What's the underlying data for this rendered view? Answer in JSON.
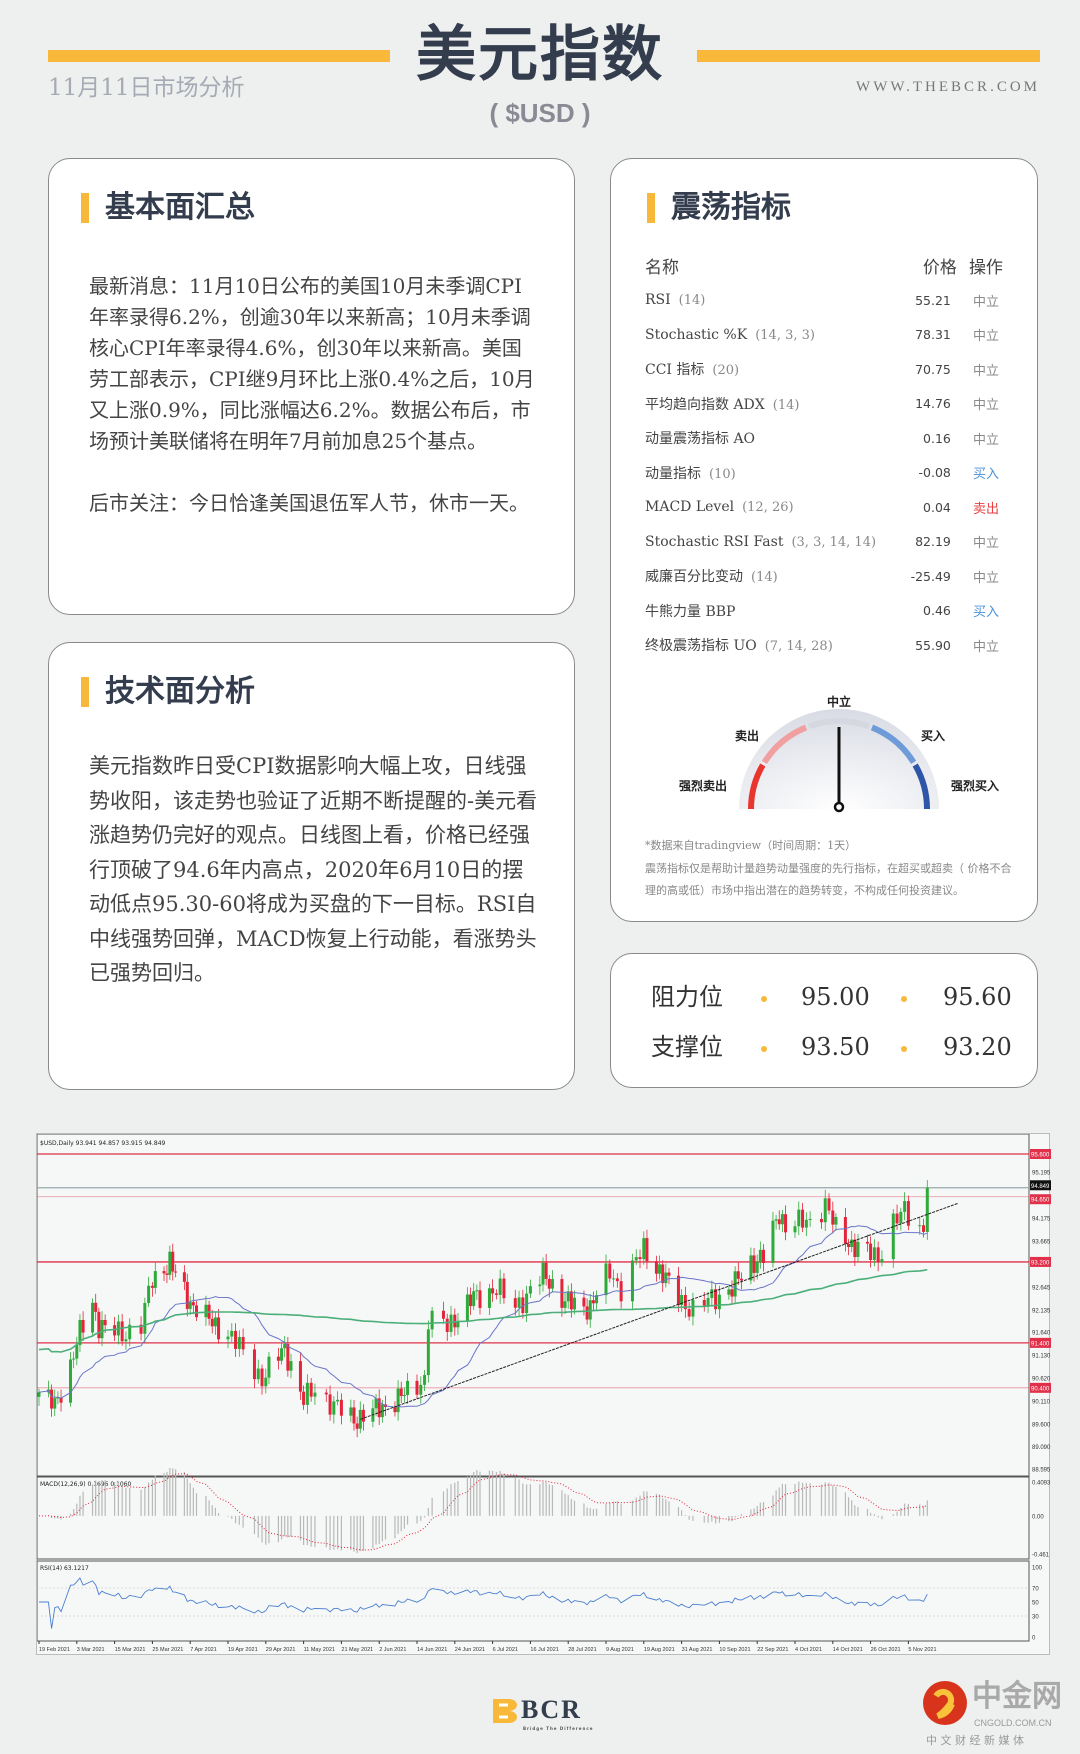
{
  "header": {
    "title": "美元指数",
    "subtitle": "( $USD )",
    "date": "11月11日市场分析",
    "site": "WWW.THEBCR.COM"
  },
  "fundamentals": {
    "title": "基本面汇总",
    "paragraphs": [
      "最新消息：11月10日公布的美国10月未季调CPI年率录得6.2%，创逾30年以来新高；10月未季调核心CPI年率录得4.6%，创30年以来新高。美国劳工部表示，CPI继9月环比上涨0.4%之后，10月又上涨0.9%，同比涨幅达6.2%。数据公布后，市场预计美联储将在明年7月前加息25个基点。",
      "后市关注：今日恰逢美国退伍军人节，休市一天。"
    ]
  },
  "technical": {
    "title": "技术面分析",
    "text": "美元指数昨日受CPI数据影响大幅上攻，日线强势收阳，该走势也验证了近期不断提醒的-美元看涨趋势仍完好的观点。日线图上看，价格已经强行顶破了94.6年内高点，2020年6月10日的摆动低点95.30-60将成为买盘的下一目标。RSI自中线强势回弹，MACD恢复上行动能，看涨势头已强势回归。"
  },
  "oscillators": {
    "title": "震荡指标",
    "headers": [
      "名称",
      "价格",
      "操作"
    ],
    "rows": [
      {
        "name": "RSI",
        "param": "(14)",
        "value": "55.21",
        "action": "中立"
      },
      {
        "name": "Stochastic %K",
        "param": "(14, 3, 3)",
        "value": "78.31",
        "action": "中立"
      },
      {
        "name": "CCI 指标",
        "param": "(20)",
        "value": "70.75",
        "action": "中立"
      },
      {
        "name": "平均趋向指数 ADX",
        "param": "(14)",
        "value": "14.76",
        "action": "中立"
      },
      {
        "name": "动量震荡指标 AO",
        "param": "",
        "value": "0.16",
        "action": "中立"
      },
      {
        "name": "动量指标",
        "param": "(10)",
        "value": "-0.08",
        "action": "买入"
      },
      {
        "name": "MACD Level",
        "param": "(12, 26)",
        "value": "0.04",
        "action": "卖出"
      },
      {
        "name": "Stochastic RSI Fast",
        "param": "(3, 3, 14, 14)",
        "value": "82.19",
        "action": "中立"
      },
      {
        "name": "威廉百分比变动",
        "param": "(14)",
        "value": "-25.49",
        "action": "中立"
      },
      {
        "name": "牛熊力量 BBP",
        "param": "",
        "value": "0.46",
        "action": "买入"
      },
      {
        "name": "终极震荡指标 UO",
        "param": "(7, 14, 28)",
        "value": "55.90",
        "action": "中立"
      }
    ],
    "action_colors": {
      "中立": "#8a8a8a",
      "买入": "#4a90d9",
      "卖出": "#e84040"
    },
    "gauge": {
      "labels": {
        "strong_sell": "强烈卖出",
        "sell": "卖出",
        "neutral": "中立",
        "buy": "买入",
        "strong_buy": "强烈买入"
      },
      "reading": "neutral",
      "colors": [
        "#e8352e",
        "#f0a0a0",
        "#d5d8e0",
        "#6f9bd8",
        "#2f55a8"
      ]
    },
    "notes": [
      "*数据来自tradingview（时间周期：1天）",
      "震荡指标仅是帮助计量趋势动量强度的先行指标，在超买或超卖（ 价格不合",
      "理的高或低）市场中指出潜在的趋势转变，不构成任何投资建议。"
    ]
  },
  "levels": {
    "resistance_label": "阻力位",
    "resistance": [
      "95.00",
      "95.60"
    ],
    "support_label": "支撑位",
    "support": [
      "93.50",
      "93.20"
    ]
  },
  "chart_data": {
    "type": "candlestick",
    "title": "$USD,Daily 93.941 94.857 93.915 94.849",
    "price_axis": {
      "range": [
        88.595,
        95.6
      ],
      "ticks": [
        "95.195",
        "94.175",
        "93.665",
        "92.645",
        "92.135",
        "91.640",
        "91.130",
        "90.620",
        "90.110",
        "89.600",
        "89.090",
        "88.595"
      ],
      "level_lines": [
        {
          "value": 95.6,
          "label": "95.600",
          "color": "#e0304a"
        },
        {
          "value": 94.849,
          "label": "94.849",
          "color": "#111"
        },
        {
          "value": 94.65,
          "label": "94.650",
          "color": "#e0304a"
        },
        {
          "value": 93.2,
          "label": "93.200",
          "color": "#e0304a"
        },
        {
          "value": 91.4,
          "label": "91.400",
          "color": "#e0304a"
        },
        {
          "value": 90.4,
          "label": "90.400",
          "color": "#e0304a"
        }
      ]
    },
    "x_labels": [
      "19 Feb 2021",
      "3 Mar 2021",
      "15 Mar 2021",
      "25 Mar 2021",
      "7 Apr 2021",
      "19 Apr 2021",
      "29 Apr 2021",
      "11 May 2021",
      "21 May 2021",
      "2 Jun 2021",
      "14 Jun 2021",
      "24 Jun 2021",
      "6 Jul 2021",
      "16 Jul 2021",
      "28 Jul 2021",
      "9 Aug 2021",
      "19 Aug 2021",
      "31 Aug 2021",
      "10 Sep 2021",
      "22 Sep 2021",
      "4 Oct 2021",
      "14 Oct 2021",
      "26 Oct 2021",
      "5 Nov 2021"
    ],
    "close_keypoints": [
      [
        "2021-02-19",
        90.3
      ],
      [
        "2021-02-24",
        90.0
      ],
      [
        "2021-03-01",
        90.9
      ],
      [
        "2021-03-04",
        91.6
      ],
      [
        "2021-03-08",
        92.3
      ],
      [
        "2021-03-10",
        91.8
      ],
      [
        "2021-03-12",
        91.7
      ],
      [
        "2021-03-17",
        91.6
      ],
      [
        "2021-03-22",
        91.8
      ],
      [
        "2021-03-25",
        92.8
      ],
      [
        "2021-03-31",
        93.2
      ],
      [
        "2021-04-02",
        92.9
      ],
      [
        "2021-04-07",
        92.3
      ],
      [
        "2021-04-13",
        91.9
      ],
      [
        "2021-04-19",
        91.6
      ],
      [
        "2021-04-22",
        91.3
      ],
      [
        "2021-04-28",
        90.6
      ],
      [
        "2021-05-05",
        91.3
      ],
      [
        "2021-05-11",
        90.1
      ],
      [
        "2021-05-14",
        90.4
      ],
      [
        "2021-05-19",
        90.0
      ],
      [
        "2021-05-25",
        89.7
      ],
      [
        "2021-06-01",
        89.9
      ],
      [
        "2021-06-09",
        90.2
      ],
      [
        "2021-06-16",
        90.6
      ],
      [
        "2021-06-17",
        91.9
      ],
      [
        "2021-06-22",
        91.8
      ],
      [
        "2021-06-30",
        92.4
      ],
      [
        "2021-07-07",
        92.6
      ],
      [
        "2021-07-12",
        92.2
      ],
      [
        "2021-07-20",
        92.9
      ],
      [
        "2021-07-22",
        92.8
      ],
      [
        "2021-07-27",
        92.3
      ],
      [
        "2021-08-04",
        92.2
      ],
      [
        "2021-08-10",
        93.0
      ],
      [
        "2021-08-13",
        92.6
      ],
      [
        "2021-08-19",
        93.5
      ],
      [
        "2021-08-24",
        93.0
      ],
      [
        "2021-08-27",
        92.7
      ],
      [
        "2021-09-03",
        92.1
      ],
      [
        "2021-09-08",
        92.4
      ],
      [
        "2021-09-14",
        92.6
      ],
      [
        "2021-09-20",
        93.2
      ],
      [
        "2021-09-24",
        93.3
      ],
      [
        "2021-09-29",
        94.3
      ],
      [
        "2021-10-01",
        94.0
      ],
      [
        "2021-10-08",
        94.1
      ],
      [
        "2021-10-12",
        94.5
      ],
      [
        "2021-10-15",
        93.9
      ],
      [
        "2021-10-20",
        93.6
      ],
      [
        "2021-10-28",
        93.3
      ],
      [
        "2021-11-01",
        94.1
      ],
      [
        "2021-11-04",
        94.3
      ],
      [
        "2021-11-09",
        93.9
      ],
      [
        "2021-11-10",
        94.85
      ]
    ],
    "trendline": [
      [
        "2021-05-27",
        89.7
      ],
      [
        "2021-11-18",
        94.5
      ]
    ],
    "moving_averages": [
      {
        "period": 20,
        "color": "#6a74c8"
      },
      {
        "period": 100,
        "color": "#4caf7a"
      }
    ],
    "macd": {
      "label": "MACD(12,26,9) 0.1696 0.1060",
      "range": [
        -0.461,
        0.4093
      ],
      "ticks": [
        "0.4093",
        "0.00",
        "-0.461"
      ]
    },
    "rsi": {
      "label": "RSI(14) 63.1217",
      "ticks": [
        "100",
        "70",
        "50",
        "30",
        "0"
      ]
    }
  },
  "footer": {
    "bcr_logo": "BCR",
    "bcr_tagline": "Bridge The Difference",
    "cngold_logo": "中金网",
    "cngold_domain": "CNGOLD.COM.CN",
    "cngold_tagline": "中 文 财 经 新 媒 体"
  }
}
